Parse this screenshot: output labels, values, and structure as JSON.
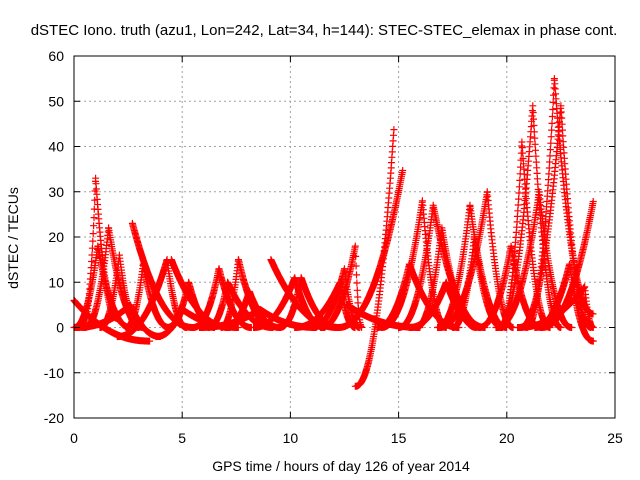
{
  "chart_data": {
    "type": "scatter",
    "title": "dSTEC Iono. truth (azu1, Lon=242, Lat=34, h=144): STEC-STEC_elemax in phase cont.",
    "xlabel": "GPS time / hours of day 126 of year 2014",
    "ylabel": "dSTEC  / TECUs",
    "xlim": [
      0,
      25
    ],
    "ylim": [
      -20,
      60
    ],
    "xticks": [
      0,
      5,
      10,
      15,
      20,
      25
    ],
    "yticks": [
      -20,
      -10,
      0,
      10,
      20,
      30,
      40,
      50,
      60
    ],
    "grid": true,
    "marker": "+",
    "color": "#ff0000",
    "arcs": [
      {
        "start": 0.0,
        "peak": 0.0,
        "end": 3.5,
        "peakval": 6,
        "startval": 6,
        "endval": -3
      },
      {
        "start": 0.0,
        "peak": 1.1,
        "end": 2.6,
        "peakval": 18,
        "startval": 0,
        "endval": 0
      },
      {
        "start": 0.4,
        "peak": 1.0,
        "end": 2.0,
        "peakval": 33,
        "startval": 0,
        "endval": 2
      },
      {
        "start": 0.5,
        "peak": 1.6,
        "end": 3.2,
        "peakval": 22,
        "startval": 0,
        "endval": 0
      },
      {
        "start": 1.2,
        "peak": 2.1,
        "end": 3.0,
        "peakval": 16,
        "startval": 0,
        "endval": 0
      },
      {
        "start": 0.1,
        "peak": 2.6,
        "end": 4.0,
        "peakval": 5,
        "startval": 0,
        "endval": -2
      },
      {
        "start": 2.7,
        "peak": 2.7,
        "end": 5.5,
        "peakval": 23,
        "startval": 23,
        "endval": 0
      },
      {
        "start": 2.4,
        "peak": 3.2,
        "end": 4.4,
        "peakval": 14,
        "startval": 0,
        "endval": 0
      },
      {
        "start": 2.0,
        "peak": 4.3,
        "end": 5.2,
        "peakval": 15,
        "startval": -2,
        "endval": 0
      },
      {
        "start": 4.5,
        "peak": 4.5,
        "end": 7.2,
        "peakval": 15,
        "startval": 15,
        "endval": 0
      },
      {
        "start": 4.3,
        "peak": 5.3,
        "end": 6.5,
        "peakval": 10,
        "startval": 0,
        "endval": 0
      },
      {
        "start": 3.8,
        "peak": 5.0,
        "end": 7.6,
        "peakval": 4,
        "startval": -2,
        "endval": 0
      },
      {
        "start": 5.5,
        "peak": 6.7,
        "end": 8.2,
        "peakval": 13,
        "startval": 0,
        "endval": 0
      },
      {
        "start": 6.2,
        "peak": 7.1,
        "end": 9.2,
        "peakval": 10,
        "startval": 0,
        "endval": 0
      },
      {
        "start": 6.8,
        "peak": 7.6,
        "end": 9.2,
        "peakval": 15,
        "startval": 0,
        "endval": 0
      },
      {
        "start": 7.0,
        "peak": 8.1,
        "end": 9.5,
        "peakval": 8,
        "startval": 0,
        "endval": 0
      },
      {
        "start": 5.8,
        "peak": 8.6,
        "end": 11.2,
        "peakval": 4,
        "startval": 0,
        "endval": 0
      },
      {
        "start": 9.1,
        "peak": 9.1,
        "end": 12.2,
        "peakval": 15,
        "startval": 15,
        "endval": 0
      },
      {
        "start": 8.3,
        "peak": 10.2,
        "end": 11.6,
        "peakval": 11,
        "startval": 0,
        "endval": 0
      },
      {
        "start": 9.5,
        "peak": 10.5,
        "end": 12.2,
        "peakval": 11,
        "startval": 0,
        "endval": 0
      },
      {
        "start": 10.2,
        "peak": 12.3,
        "end": 13.0,
        "peakval": 10,
        "startval": 0,
        "endval": 0
      },
      {
        "start": 11.0,
        "peak": 12.5,
        "end": 13.2,
        "peakval": 13,
        "startval": 0,
        "endval": 0
      },
      {
        "start": 11.4,
        "peak": 13.0,
        "end": 13.3,
        "peakval": 18,
        "startval": 0,
        "endval": 0
      },
      {
        "start": 13.0,
        "peak": 14.8,
        "end": 14.8,
        "peakval": 45,
        "startval": -13,
        "endval": 45
      },
      {
        "start": 12.2,
        "peak": 15.2,
        "end": 15.2,
        "peakval": 35,
        "startval": 0,
        "endval": 35
      },
      {
        "start": 12.6,
        "peak": 12.6,
        "end": 16.0,
        "peakval": 5,
        "startval": 5,
        "endval": 0
      },
      {
        "start": 14.0,
        "peak": 15.5,
        "end": 17.8,
        "peakval": 14,
        "startval": 0,
        "endval": 0
      },
      {
        "start": 14.2,
        "peak": 16.1,
        "end": 17.2,
        "peakval": 28,
        "startval": 0,
        "endval": 0
      },
      {
        "start": 15.0,
        "peak": 16.6,
        "end": 19.0,
        "peakval": 27,
        "startval": 0,
        "endval": 0
      },
      {
        "start": 15.8,
        "peak": 17.0,
        "end": 18.6,
        "peakval": 22,
        "startval": 0,
        "endval": 0
      },
      {
        "start": 15.5,
        "peak": 17.2,
        "end": 18.8,
        "peakval": 10,
        "startval": 0,
        "endval": 0
      },
      {
        "start": 16.8,
        "peak": 18.3,
        "end": 20.0,
        "peakval": 27,
        "startval": 0,
        "endval": 0
      },
      {
        "start": 16.9,
        "peak": 19.1,
        "end": 20.3,
        "peakval": 30,
        "startval": 0,
        "endval": 0
      },
      {
        "start": 17.5,
        "peak": 18.5,
        "end": 19.8,
        "peakval": 20,
        "startval": 0,
        "endval": 0
      },
      {
        "start": 18.7,
        "peak": 20.2,
        "end": 21.6,
        "peakval": 18,
        "startval": 0,
        "endval": 0
      },
      {
        "start": 19.7,
        "peak": 20.7,
        "end": 22.0,
        "peakval": 41,
        "startval": 0,
        "endval": 0
      },
      {
        "start": 19.6,
        "peak": 21.2,
        "end": 22.5,
        "peakval": 49,
        "startval": 0,
        "endval": 0
      },
      {
        "start": 19.5,
        "peak": 21.5,
        "end": 23.0,
        "peakval": 30,
        "startval": 0,
        "endval": 0
      },
      {
        "start": 20.9,
        "peak": 22.2,
        "end": 24.0,
        "peakval": 55,
        "startval": 0,
        "endval": 3
      },
      {
        "start": 20.6,
        "peak": 22.5,
        "end": 23.9,
        "peakval": 49,
        "startval": 0,
        "endval": 0
      },
      {
        "start": 21.3,
        "peak": 22.9,
        "end": 24.0,
        "peakval": 14,
        "startval": 0,
        "endval": -3
      },
      {
        "start": 21.6,
        "peak": 24.0,
        "end": 24.0,
        "peakval": 28,
        "startval": 0,
        "endval": 28
      },
      {
        "start": 20.5,
        "peak": 23.6,
        "end": 24.0,
        "peakval": 9,
        "startval": 0,
        "endval": 0
      }
    ]
  }
}
